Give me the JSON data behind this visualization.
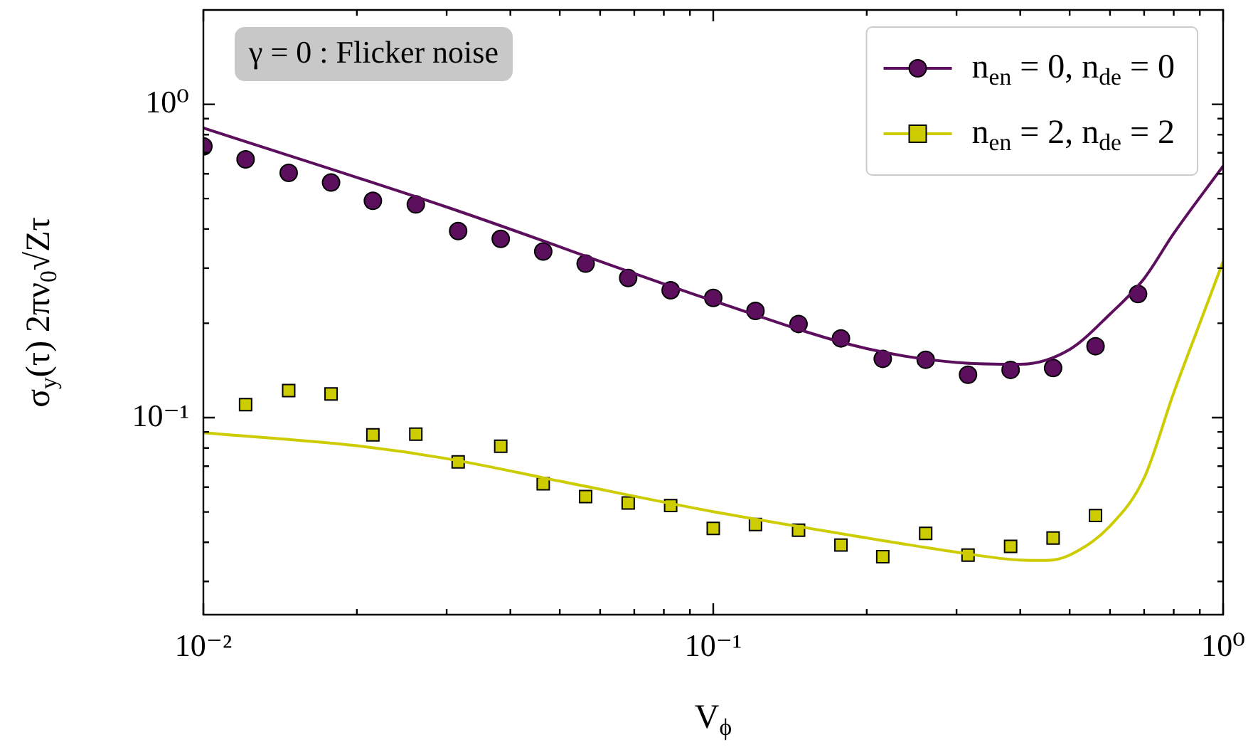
{
  "chart_data": {
    "type": "scatter",
    "xlabel": "V$_{ϕ}$",
    "ylabel": "σ$_{y}$(τ) 2πν$_{0}$√Zτ",
    "annotations": [
      "γ = 0 : Flicker noise"
    ],
    "log": "xy",
    "legend": "top right",
    "grid": false,
    "xlim": [
      0.01,
      1
    ],
    "ylim": [
      0.0235,
      2
    ],
    "xticks": [
      {
        "value": 0.01,
        "label": "10⁻²"
      },
      {
        "value": 0.02,
        "label": null
      },
      {
        "value": 0.03,
        "label": null
      },
      {
        "value": 0.04,
        "label": null
      },
      {
        "value": 0.05,
        "label": null
      },
      {
        "value": 0.06,
        "label": null
      },
      {
        "value": 0.07,
        "label": null
      },
      {
        "value": 0.08,
        "label": null
      },
      {
        "value": 0.09,
        "label": null
      },
      {
        "value": 0.1,
        "label": "10⁻¹"
      },
      {
        "value": 0.2,
        "label": null
      },
      {
        "value": 0.3,
        "label": null
      },
      {
        "value": 0.4,
        "label": null
      },
      {
        "value": 0.5,
        "label": null
      },
      {
        "value": 0.6,
        "label": null
      },
      {
        "value": 0.7,
        "label": null
      },
      {
        "value": 0.8,
        "label": null
      },
      {
        "value": 0.9,
        "label": null
      },
      {
        "value": 1,
        "label": "10⁰"
      }
    ],
    "yticks": [
      {
        "value": 0.03,
        "label": null
      },
      {
        "value": 0.04,
        "label": null
      },
      {
        "value": 0.05,
        "label": null
      },
      {
        "value": 0.06,
        "label": null
      },
      {
        "value": 0.07,
        "label": null
      },
      {
        "value": 0.08,
        "label": null
      },
      {
        "value": 0.09,
        "label": null
      },
      {
        "value": 0.1,
        "label": "10⁻¹"
      },
      {
        "value": 0.2,
        "label": null
      },
      {
        "value": 0.3,
        "label": null
      },
      {
        "value": 0.4,
        "label": null
      },
      {
        "value": 0.5,
        "label": null
      },
      {
        "value": 0.6,
        "label": null
      },
      {
        "value": 0.7,
        "label": null
      },
      {
        "value": 0.8,
        "label": null
      },
      {
        "value": 0.9,
        "label": null
      },
      {
        "value": 1,
        "label": "10⁰"
      }
    ],
    "series": [
      {
        "type": "line",
        "color": "#5c0f5c",
        "x": [
          0.01,
          0.03,
          0.1,
          0.2,
          0.3,
          0.4,
          0.5,
          0.6,
          0.7,
          0.8,
          1
        ],
        "values": [
          0.84,
          0.47,
          0.236,
          0.166,
          0.15,
          0.148,
          0.165,
          0.214,
          0.278,
          0.387,
          0.635
        ]
      },
      {
        "type": "line",
        "color": "#cccc00",
        "x": [
          0.01,
          0.02,
          0.03,
          0.05,
          0.1,
          0.2,
          0.3,
          0.4,
          0.45,
          0.5,
          0.6,
          0.7,
          0.8,
          0.9,
          1
        ],
        "values": [
          0.0895,
          0.0813,
          0.074,
          0.0627,
          0.0501,
          0.0413,
          0.0372,
          0.0351,
          0.035,
          0.0364,
          0.0451,
          0.0642,
          0.12,
          0.2,
          0.315
        ]
      },
      {
        "name": "n$_{en}$ = 0, n$_{de}$ = 0",
        "color": "#5c0f5c",
        "marker": "circle",
        "x": [
          0.01,
          0.0121,
          0.0147,
          0.0178,
          0.0215,
          0.0261,
          0.0316,
          0.0383,
          0.0464,
          0.0562,
          0.0681,
          0.0825,
          0.1,
          0.121,
          0.147,
          0.178,
          0.215,
          0.261,
          0.316,
          0.383,
          0.464,
          0.562,
          0.681
        ],
        "values": [
          0.734,
          0.667,
          0.604,
          0.563,
          0.492,
          0.479,
          0.394,
          0.372,
          0.339,
          0.31,
          0.279,
          0.255,
          0.241,
          0.219,
          0.199,
          0.179,
          0.154,
          0.153,
          0.137,
          0.142,
          0.144,
          0.169,
          0.248
        ]
      },
      {
        "name": "n$_{en}$ = 2, n$_{de}$ = 2",
        "color": "#cccc00",
        "marker": "square",
        "x": [
          0.0121,
          0.0147,
          0.0178,
          0.0215,
          0.0261,
          0.0316,
          0.0383,
          0.0464,
          0.0562,
          0.0681,
          0.0825,
          0.1,
          0.121,
          0.147,
          0.178,
          0.215,
          0.261,
          0.316,
          0.383,
          0.464,
          0.562
        ],
        "values": [
          0.11,
          0.122,
          0.119,
          0.0881,
          0.0886,
          0.0722,
          0.081,
          0.0615,
          0.056,
          0.0534,
          0.0524,
          0.0443,
          0.0456,
          0.0437,
          0.0392,
          0.036,
          0.0427,
          0.0364,
          0.0388,
          0.0413,
          0.0487
        ]
      }
    ]
  }
}
